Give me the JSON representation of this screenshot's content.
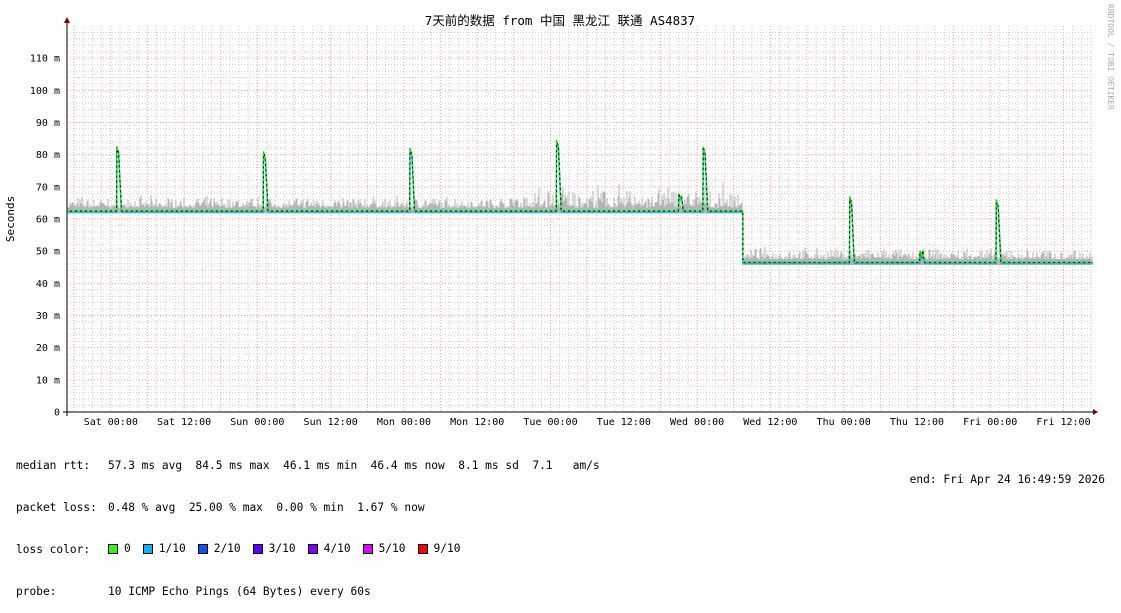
{
  "chart_data": {
    "type": "line",
    "title": "7天前的数据 from 中国 黑龙江 联通 AS4837",
    "ylabel": "Seconds",
    "ylim": [
      0,
      120
    ],
    "yticks": [
      {
        "v": 0,
        "label": "0"
      },
      {
        "v": 10,
        "label": "10 m"
      },
      {
        "v": 20,
        "label": "20 m"
      },
      {
        "v": 30,
        "label": "30 m"
      },
      {
        "v": 40,
        "label": "40 m"
      },
      {
        "v": 50,
        "label": "50 m"
      },
      {
        "v": 60,
        "label": "60 m"
      },
      {
        "v": 70,
        "label": "70 m"
      },
      {
        "v": 80,
        "label": "80 m"
      },
      {
        "v": 90,
        "label": "90 m"
      },
      {
        "v": 100,
        "label": "100 m"
      },
      {
        "v": 110,
        "label": "110 m"
      }
    ],
    "xrange": [
      "Fri 16:50",
      "Fri 16:50 (next)"
    ],
    "xticks": [
      "Sat 00:00",
      "Sat 12:00",
      "Sun 00:00",
      "Sun 12:00",
      "Mon 00:00",
      "Mon 12:00",
      "Tue 00:00",
      "Tue 12:00",
      "Wed 00:00",
      "Wed 12:00",
      "Thu 00:00",
      "Thu 12:00",
      "Fri 00:00",
      "Fri 12:00"
    ],
    "grid": true,
    "median_levels": [
      {
        "until": "Wed 07:30",
        "value_ms": 62.5
      },
      {
        "until": "end",
        "value_ms": 46.5
      }
    ],
    "spikes": [
      {
        "t": "Sat 01:00",
        "peak_ms": 82.5
      },
      {
        "t": "Sun 01:00",
        "peak_ms": 81
      },
      {
        "t": "Mon 01:00",
        "peak_ms": 82
      },
      {
        "t": "Tue 01:00",
        "peak_ms": 84.5
      },
      {
        "t": "Tue 21:00",
        "peak_ms": 68
      },
      {
        "t": "Wed 01:00",
        "peak_ms": 82.5
      },
      {
        "t": "Thu 01:00",
        "peak_ms": 67
      },
      {
        "t": "Thu 12:30",
        "peak_ms": 50
      },
      {
        "t": "Fri 01:00",
        "peak_ms": 66
      }
    ],
    "colors": {
      "median": "#26ff00",
      "smoke": "#a0a0a0",
      "major_grid": "#ff9999",
      "minor_grid": "#cccccc"
    }
  },
  "watermark": "RRDTOOL / TOBI OETIKER",
  "legend": {
    "median_rtt": {
      "label": "median rtt:",
      "text": "57.3 ms avg  84.5 ms max  46.1 ms min  46.4 ms now  8.1 ms sd  7.1   am/s"
    },
    "packet_loss": {
      "label": "packet loss:",
      "text": "0.48 % avg  25.00 % max  0.00 % min  1.67 % now"
    },
    "loss_color": {
      "label": "loss color:",
      "items": [
        {
          "label": "0",
          "color": "#26ff00"
        },
        {
          "label": "1/10",
          "color": "#00b8ff"
        },
        {
          "label": "2/10",
          "color": "#0059ff"
        },
        {
          "label": "3/10",
          "color": "#5e00ff"
        },
        {
          "label": "4/10",
          "color": "#7e00ff"
        },
        {
          "label": "5/10",
          "color": "#dd00ff"
        },
        {
          "label": "9/10",
          "color": "#ff0000"
        }
      ]
    },
    "probe": {
      "label": "probe:",
      "text": "10 ICMP Echo Pings (64 Bytes) every 60s"
    },
    "end": "end: Fri Apr 24 16:49:59 2026"
  }
}
